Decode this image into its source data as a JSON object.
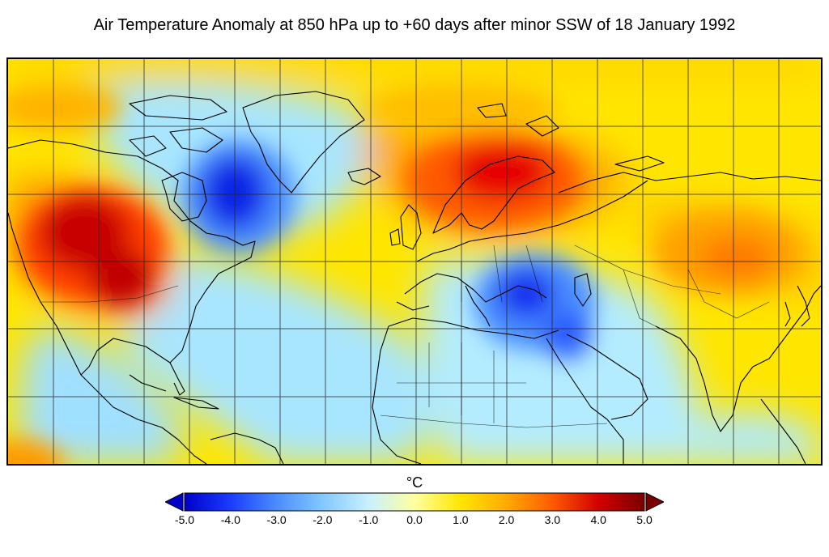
{
  "title": "Air Temperature Anomaly at 850 hPa up to +60 days after minor SSW of 18 January 1992",
  "colorbar": {
    "unit": "°C",
    "min": -5.0,
    "max": 5.0,
    "tick_labels": [
      "-5.0",
      "-4.0",
      "-3.0",
      "-2.0",
      "-1.0",
      "0.0",
      "1.0",
      "2.0",
      "3.0",
      "4.0",
      "5.0"
    ],
    "colors": [
      "#0000c8",
      "#1a3cff",
      "#4a8cff",
      "#82c8ff",
      "#c8f0ff",
      "#ffffa0",
      "#ffe600",
      "#ffaa00",
      "#ff5a00",
      "#d20000",
      "#7a0000"
    ],
    "under_color": "#0000c8",
    "over_color": "#7a0000"
  },
  "map": {
    "region": "Northern Hemisphere, North America to East Asia",
    "graticule": true,
    "anomaly_features": [
      {
        "name": "Western North America warm anomaly",
        "value": 4.5
      },
      {
        "name": "Eastern Canada / Hudson Bay cold anomaly",
        "value": -4.5
      },
      {
        "name": "Scandinavia / Northern Europe warm anomaly",
        "value": 4.0
      },
      {
        "name": "Middle East / Turkey cold anomaly",
        "value": -4.0
      },
      {
        "name": "Central Asia / Mongolia warm anomaly",
        "value": 2.5
      },
      {
        "name": "North Africa cool anomaly",
        "value": -1.5
      },
      {
        "name": "Arctic Ocean warm anomaly",
        "value": 1.5
      }
    ]
  }
}
